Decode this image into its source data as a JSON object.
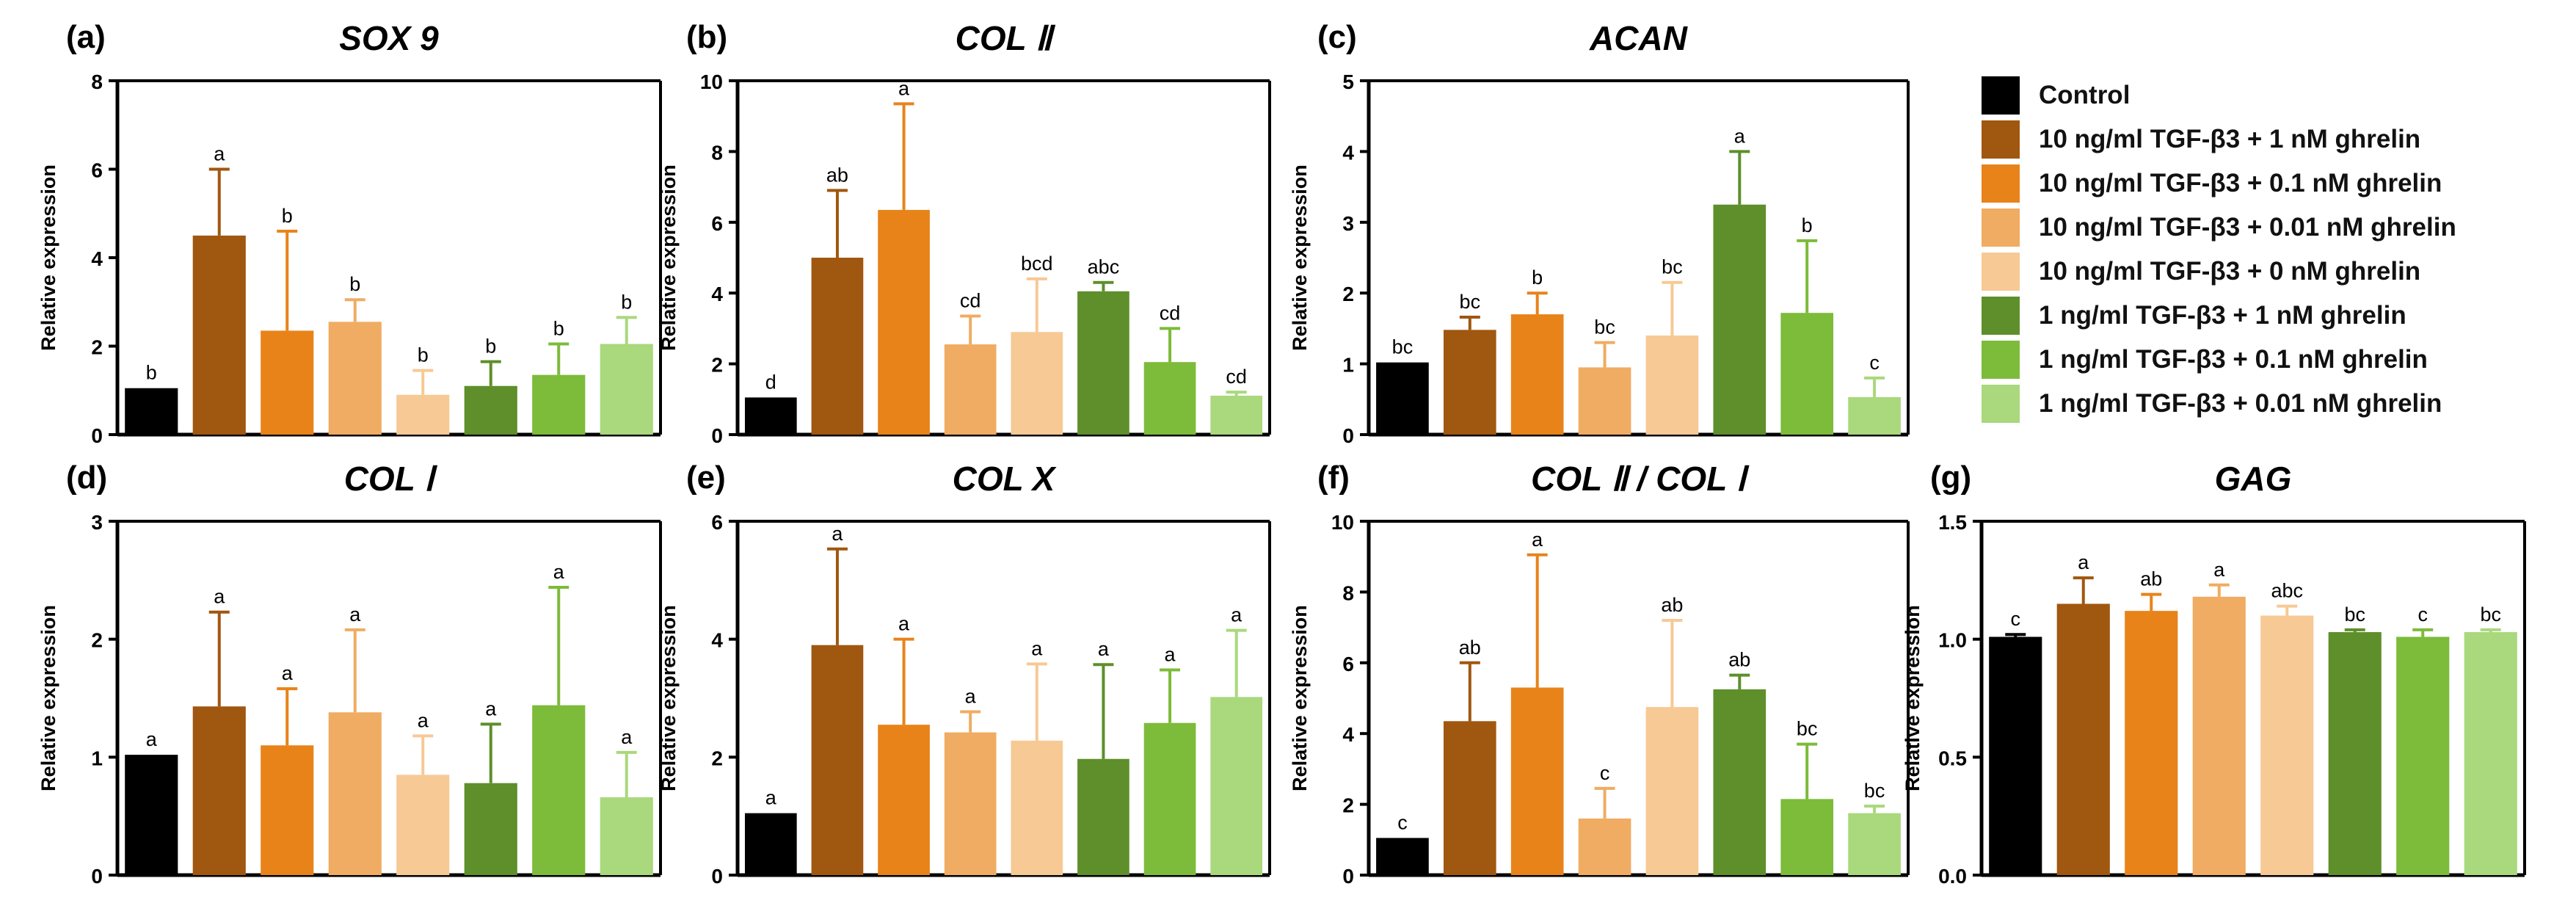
{
  "legend": {
    "items": [
      {
        "label": "Control",
        "color": "#000000"
      },
      {
        "label": "10 ng/ml TGF-β3 + 1 nM ghrelin",
        "color": "#A0570F"
      },
      {
        "label": "10 ng/ml TGF-β3 + 0.1 nM ghrelin",
        "color": "#E8831A"
      },
      {
        "label": "10 ng/ml TGF-β3 + 0.01 nM ghrelin",
        "color": "#F0AC62"
      },
      {
        "label": "10 ng/ml TGF-β3 + 0 nM ghrelin",
        "color": "#F7C995"
      },
      {
        "label": "1 ng/ml TGF-β3 + 1 nM ghrelin",
        "color": "#5E8F2B"
      },
      {
        "label": "1 ng/ml TGF-β3 + 0.1 nM ghrelin",
        "color": "#7DBB3A"
      },
      {
        "label": "1 ng/ml TGF-β3 + 0.01 nM ghrelin",
        "color": "#AAD87D"
      }
    ]
  },
  "chart_data": [
    {
      "panel": "(a)",
      "title": "SOX 9",
      "type": "bar",
      "ylabel": "Relative expression",
      "ylim": [
        0,
        8
      ],
      "yticks": [
        "0",
        "2",
        "4",
        "6",
        "8"
      ],
      "values": [
        1.05,
        4.5,
        2.35,
        2.55,
        0.9,
        1.1,
        1.35,
        2.05
      ],
      "errors": [
        0,
        1.5,
        2.25,
        0.5,
        0.55,
        0.55,
        0.7,
        0.6
      ],
      "labels": [
        "b",
        "a",
        "b",
        "b",
        "b",
        "b",
        "b",
        "b"
      ]
    },
    {
      "panel": "(b)",
      "title": "COL Ⅱ",
      "type": "bar",
      "ylabel": "Relative expression",
      "ylim": [
        0,
        10
      ],
      "yticks": [
        "0",
        "2",
        "4",
        "6",
        "8",
        "10"
      ],
      "values": [
        1.05,
        5.0,
        6.35,
        2.55,
        2.9,
        4.05,
        2.05,
        1.1
      ],
      "errors": [
        0,
        1.9,
        3.0,
        0.8,
        1.5,
        0.25,
        0.95,
        0.1
      ],
      "labels": [
        "d",
        "ab",
        "a",
        "cd",
        "bcd",
        "abc",
        "cd",
        "cd"
      ]
    },
    {
      "panel": "(c)",
      "title": "ACAN",
      "type": "bar",
      "ylabel": "Relative expression",
      "ylim": [
        0,
        5
      ],
      "yticks": [
        "0",
        "1",
        "2",
        "3",
        "4",
        "5"
      ],
      "values": [
        1.02,
        1.48,
        1.7,
        0.95,
        1.4,
        3.25,
        1.72,
        0.53
      ],
      "errors": [
        0,
        0.18,
        0.3,
        0.35,
        0.75,
        0.75,
        1.02,
        0.27
      ],
      "labels": [
        "bc",
        "bc",
        "b",
        "bc",
        "bc",
        "a",
        "b",
        "c"
      ]
    },
    {
      "panel": "(d)",
      "title": "COL Ⅰ",
      "type": "bar",
      "ylabel": "Relative expression",
      "ylim": [
        0,
        3
      ],
      "yticks": [
        "0",
        "1",
        "2",
        "3"
      ],
      "values": [
        1.02,
        1.43,
        1.1,
        1.38,
        0.85,
        0.78,
        1.44,
        0.66
      ],
      "errors": [
        0,
        0.8,
        0.48,
        0.7,
        0.33,
        0.5,
        1.0,
        0.38
      ],
      "labels": [
        "a",
        "a",
        "a",
        "a",
        "a",
        "a",
        "a",
        "a"
      ]
    },
    {
      "panel": "(e)",
      "title": "COL X",
      "type": "bar",
      "ylabel": "Relative expression",
      "ylim": [
        0,
        6
      ],
      "yticks": [
        "0",
        "2",
        "4",
        "6"
      ],
      "values": [
        1.05,
        3.9,
        2.55,
        2.42,
        2.28,
        1.97,
        2.58,
        3.02
      ],
      "errors": [
        0,
        1.63,
        1.45,
        0.35,
        1.3,
        1.6,
        0.9,
        1.13
      ],
      "labels": [
        "a",
        "a",
        "a",
        "a",
        "a",
        "a",
        "a",
        "a"
      ]
    },
    {
      "panel": "(f)",
      "title": "COL Ⅱ / COL Ⅰ",
      "type": "bar",
      "ylabel": "Relative expression",
      "ylim": [
        0,
        10
      ],
      "yticks": [
        "0",
        "2",
        "4",
        "6",
        "8",
        "10"
      ],
      "values": [
        1.05,
        4.35,
        5.3,
        1.6,
        4.75,
        5.25,
        2.15,
        1.75
      ],
      "errors": [
        0,
        1.65,
        3.75,
        0.85,
        2.45,
        0.4,
        1.55,
        0.2
      ],
      "labels": [
        "c",
        "ab",
        "a",
        "c",
        "ab",
        "ab",
        "bc",
        "bc"
      ]
    },
    {
      "panel": "(g)",
      "title": "GAG",
      "type": "bar",
      "ylabel": "Relative expression",
      "ylim": [
        0,
        1.5
      ],
      "yticks": [
        "0.0",
        "0.5",
        "1.0",
        "1.5"
      ],
      "values": [
        1.01,
        1.15,
        1.12,
        1.18,
        1.1,
        1.03,
        1.01,
        1.03
      ],
      "errors": [
        0.01,
        0.11,
        0.07,
        0.05,
        0.04,
        0.01,
        0.03,
        0.01
      ],
      "labels": [
        "c",
        "a",
        "ab",
        "a",
        "abc",
        "bc",
        "c",
        "bc"
      ]
    }
  ]
}
